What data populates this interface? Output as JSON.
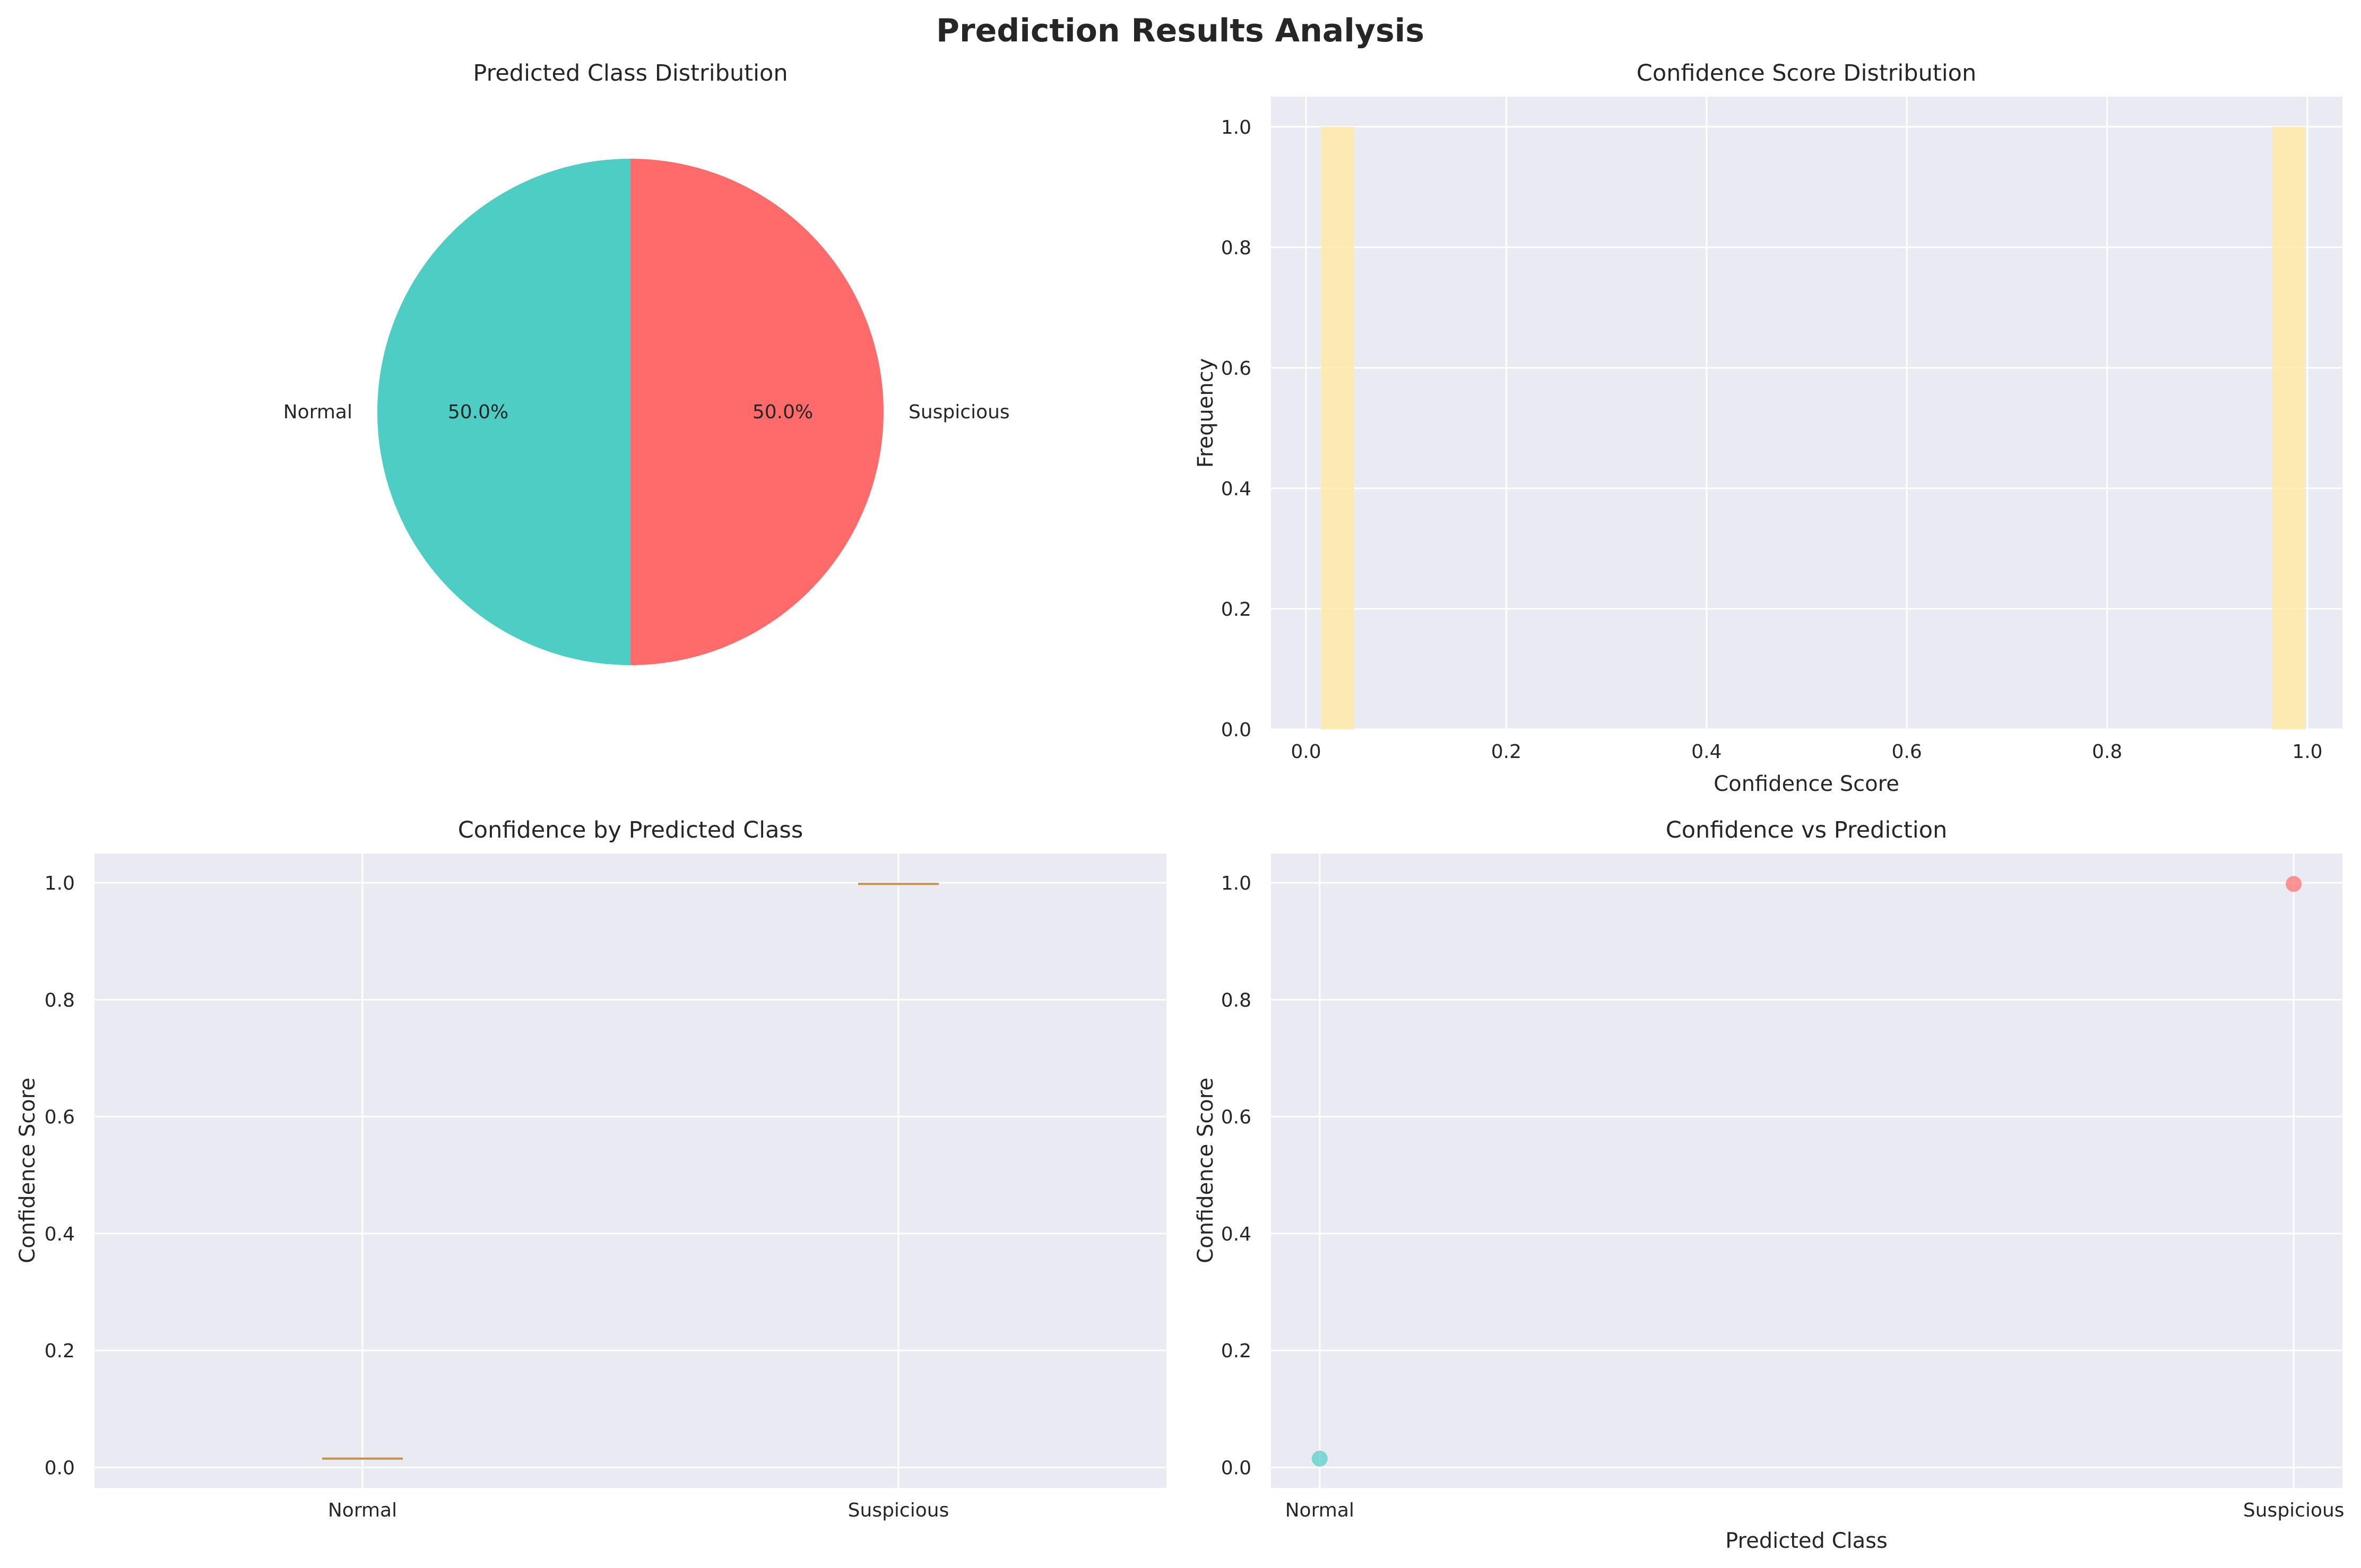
{
  "suptitle": "Prediction Results Analysis",
  "colors": {
    "normal": "#4ECDC4",
    "suspicious": "#FF6B6B",
    "hist": "#FFEAA7",
    "median": "#C8924E",
    "panel_bg": "#EAEAF2",
    "grid": "#FFFFFF"
  },
  "chart_data": [
    {
      "type": "pie",
      "title": "Predicted Class Distribution",
      "labels": [
        "Suspicious",
        "Normal"
      ],
      "values": [
        50,
        50
      ],
      "pct_labels": [
        "50.0%",
        "50.0%"
      ]
    },
    {
      "type": "bar",
      "title": "Confidence Score Distribution",
      "xlabel": "Confidence Score",
      "ylabel": "Frequency",
      "xlim": [
        -0.035,
        1.035
      ],
      "ylim": [
        0,
        1.05
      ],
      "xticks": [
        "0.0",
        "0.2",
        "0.4",
        "0.6",
        "0.8",
        "1.0"
      ],
      "yticks": [
        "0.0",
        "0.2",
        "0.4",
        "0.6",
        "0.8",
        "1.0"
      ],
      "bins": [
        {
          "x0": 0.015,
          "x1": 0.048,
          "count": 1
        },
        {
          "x0": 0.965,
          "x1": 0.998,
          "count": 1
        }
      ]
    },
    {
      "type": "box",
      "title": "Confidence by Predicted Class",
      "xlabel": "",
      "ylabel": "Confidence Score",
      "categories": [
        "Normal",
        "Suspicious"
      ],
      "values": [
        0.015,
        0.998
      ],
      "ylim": [
        -0.035,
        1.05
      ],
      "yticks": [
        "0.0",
        "0.2",
        "0.4",
        "0.6",
        "0.8",
        "1.0"
      ]
    },
    {
      "type": "scatter",
      "title": "Confidence vs Prediction",
      "xlabel": "Predicted Class",
      "ylabel": "Confidence Score",
      "categories": [
        "Normal",
        "Suspicious"
      ],
      "points": [
        {
          "category": "Normal",
          "y": 0.015
        },
        {
          "category": "Suspicious",
          "y": 0.998
        }
      ],
      "ylim": [
        -0.035,
        1.05
      ],
      "yticks": [
        "0.0",
        "0.2",
        "0.4",
        "0.6",
        "0.8",
        "1.0"
      ]
    }
  ]
}
